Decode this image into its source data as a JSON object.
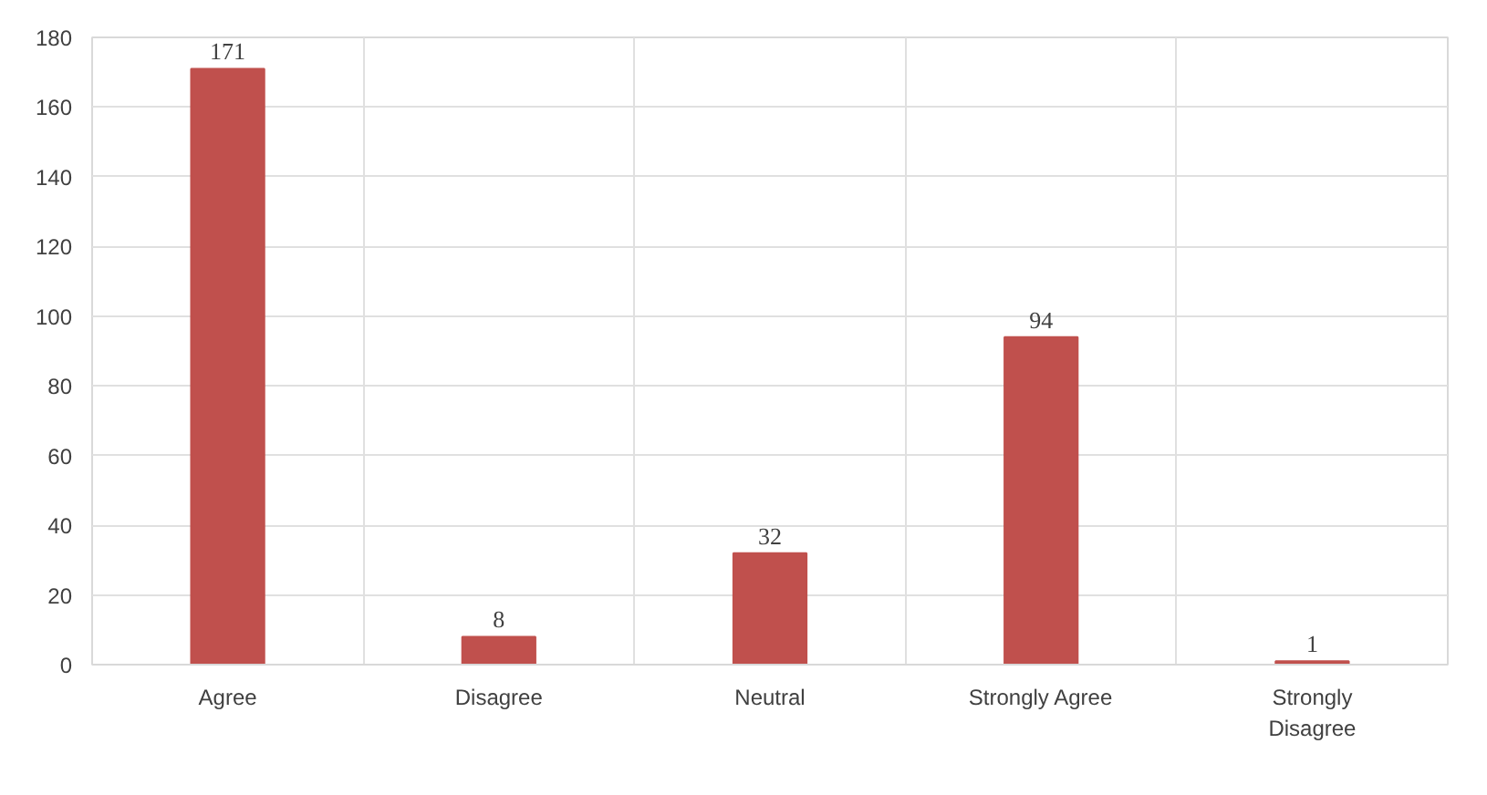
{
  "chart_data": {
    "type": "bar",
    "categories": [
      "Agree",
      "Disagree",
      "Neutral",
      "Strongly Agree",
      "Strongly Disagree"
    ],
    "values": [
      171,
      8,
      32,
      94,
      1
    ],
    "color": "#c0504d",
    "ylim": [
      0,
      180
    ],
    "yticks": [
      0,
      20,
      40,
      60,
      80,
      100,
      120,
      140,
      160,
      180
    ],
    "grid": true,
    "data_labels": true
  }
}
